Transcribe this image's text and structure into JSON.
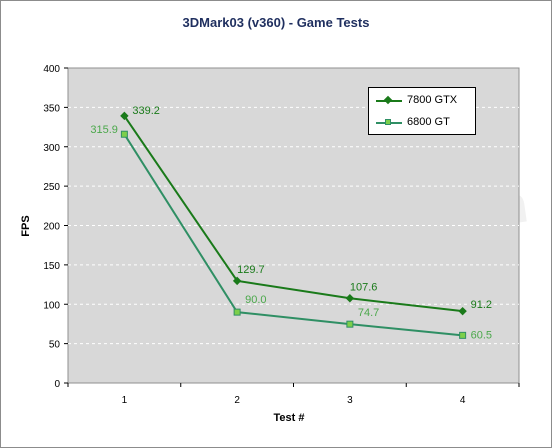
{
  "chart_data": {
    "type": "line",
    "title": "3DMark03 (v360) - Game Tests",
    "xlabel": "Test #",
    "ylabel": "FPS",
    "categories": [
      "1",
      "2",
      "3",
      "4"
    ],
    "ylim": [
      0,
      400
    ],
    "yticks": [
      0,
      50,
      100,
      150,
      200,
      250,
      300,
      350,
      400
    ],
    "y_tick_labels": [
      "0",
      "50",
      "100",
      "150",
      "200",
      "250",
      "300",
      "350",
      "400"
    ],
    "grid": true,
    "legend_position": "top-right",
    "series": [
      {
        "name": "7800 GTX",
        "values": [
          339.2,
          129.7,
          107.6,
          91.2
        ],
        "labels": [
          "339.2",
          "129.7",
          "107.6",
          "91.2"
        ],
        "color": "#1a7a1a",
        "marker": "diamond"
      },
      {
        "name": "6800 GT",
        "values": [
          315.9,
          90.0,
          74.7,
          60.5
        ],
        "labels": [
          "315.9",
          "90.0",
          "74.7",
          "60.5"
        ],
        "color": "#2f8f64",
        "marker_fill": "#7ccf4a",
        "label_color": "#4ba84b",
        "marker": "square"
      }
    ],
    "watermark": "www.Bjorn3D.com"
  }
}
